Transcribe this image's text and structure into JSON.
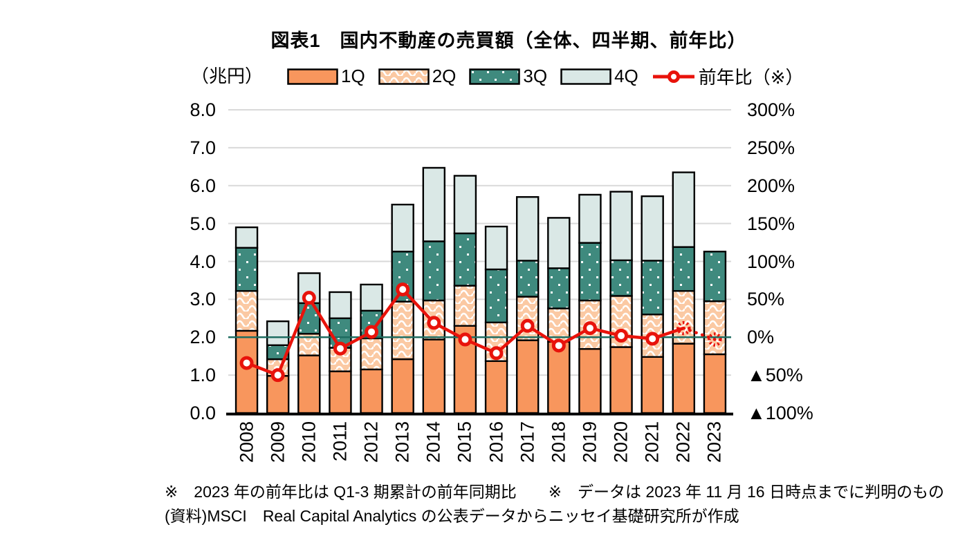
{
  "page": {
    "title": "図表1　国内不動産の売買額（全体、四半期、前年比）"
  },
  "legend": {
    "items": [
      {
        "label": "1Q"
      },
      {
        "label": "2Q"
      },
      {
        "label": "3Q"
      },
      {
        "label": "4Q"
      }
    ],
    "line_label": "前年比（※）"
  },
  "chart_data": {
    "type": "bar",
    "subtype": "stacked-bars-with-line",
    "title": "図表1　国内不動産の売買額（全体、四半期、前年比）",
    "unit_label": "（兆円）",
    "categories": [
      "2008",
      "2009",
      "2010",
      "2011",
      "2012",
      "2013",
      "2014",
      "2015",
      "2016",
      "2017",
      "2018",
      "2019",
      "2020",
      "2021",
      "2022",
      "2023"
    ],
    "series": [
      {
        "name": "1Q",
        "style": "solid-orange",
        "values": [
          2.17,
          0.98,
          1.52,
          1.1,
          1.15,
          1.42,
          1.94,
          2.3,
          1.37,
          1.92,
          1.88,
          1.69,
          1.74,
          1.48,
          1.83,
          1.55
        ]
      },
      {
        "name": "2Q",
        "style": "wave-peach",
        "values": [
          1.05,
          0.44,
          0.57,
          0.62,
          0.82,
          1.52,
          1.03,
          1.06,
          1.02,
          1.15,
          0.88,
          1.28,
          1.35,
          1.12,
          1.39,
          1.4
        ]
      },
      {
        "name": "3Q",
        "style": "dot-teal",
        "values": [
          1.14,
          0.37,
          0.81,
          0.78,
          0.73,
          1.32,
          1.56,
          1.38,
          1.4,
          0.95,
          1.06,
          1.52,
          0.94,
          1.42,
          1.16,
          1.31
        ]
      },
      {
        "name": "4Q",
        "style": "solid-paleblue",
        "values": [
          0.54,
          0.63,
          0.79,
          0.69,
          0.69,
          1.24,
          1.94,
          1.52,
          1.13,
          1.68,
          1.33,
          1.27,
          1.81,
          1.7,
          1.97,
          0
        ]
      }
    ],
    "totals": [
      4.9,
      2.42,
      3.69,
      3.19,
      3.39,
      5.5,
      6.47,
      6.26,
      4.92,
      5.7,
      5.15,
      5.76,
      5.84,
      5.72,
      6.35,
      4.26
    ],
    "line_series": {
      "name": "前年比（※）",
      "unit": "%",
      "values_percent": [
        -34,
        -50,
        52,
        -15,
        7,
        63,
        19,
        -3,
        -21,
        15,
        -11,
        12,
        2,
        -2,
        12,
        -3
      ],
      "dotted_from_index": 14
    },
    "left_axis": {
      "label": "（兆円）",
      "min": 0,
      "max": 8,
      "ticks": [
        "8.0",
        "7.0",
        "6.0",
        "5.0",
        "4.0",
        "3.0",
        "2.0",
        "1.0",
        "0.0"
      ]
    },
    "right_axis": {
      "label": "前年比",
      "min": -100,
      "max": 300,
      "ticks": [
        "300%",
        "250%",
        "200%",
        "150%",
        "100%",
        "50%",
        "0%",
        "▲50%",
        "▲100%"
      ],
      "zero_percent_at_left_value": 2.0
    },
    "grid": true,
    "legend_position": "top"
  },
  "footnotes": {
    "line1": "※　2023 年の前年比は Q1-3 期累計の前年同期比　　※　データは 2023 年 11 月 16 日時点までに判明のもの",
    "line2": "(資料)MSCI　Real Capital Analytics の公表データからニッセイ基礎研究所が作成"
  },
  "colors": {
    "q1": "#F8965D",
    "q2": "#FBC9A3",
    "q3": "#3F8A7E",
    "q4": "#DAE8E6",
    "line": "#E8130B",
    "zero_line": "#1E6C60",
    "grid": "#D9D9D9",
    "bar_border": "#000000",
    "text": "#000000"
  }
}
